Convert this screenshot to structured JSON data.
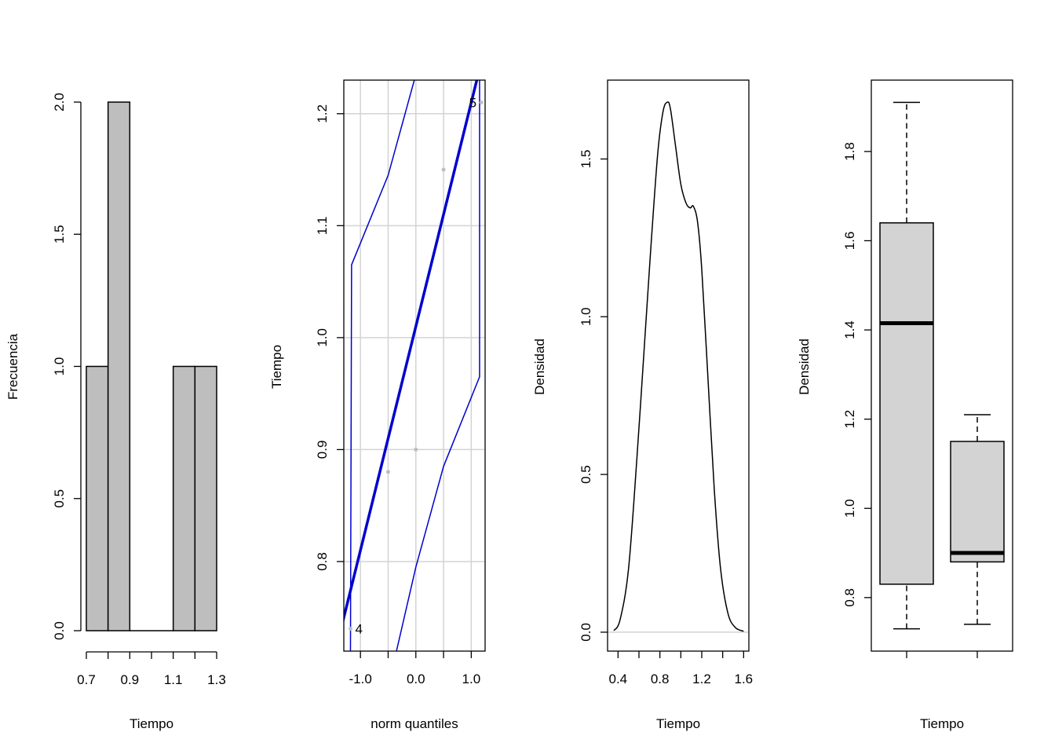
{
  "chart_data": [
    {
      "type": "bar",
      "subtype": "histogram",
      "bins": [
        {
          "from": 0.7,
          "to": 0.8,
          "count": 1
        },
        {
          "from": 0.8,
          "to": 0.9,
          "count": 2
        },
        {
          "from": 0.9,
          "to": 1.0,
          "count": 0
        },
        {
          "from": 1.0,
          "to": 1.1,
          "count": 0
        },
        {
          "from": 1.1,
          "to": 1.2,
          "count": 1
        },
        {
          "from": 1.2,
          "to": 1.3,
          "count": 1
        }
      ],
      "xlabel": "Tiempo",
      "ylabel": "Frecuencia",
      "xlim": [
        0.7,
        1.3
      ],
      "ylim": [
        0,
        2
      ],
      "xticks": [
        0.7,
        0.8,
        0.9,
        1.0,
        1.1,
        1.2,
        1.3
      ],
      "xtick_labels": [
        "0.7",
        "",
        "0.9",
        "",
        "1.1",
        "",
        "1.3"
      ],
      "yticks": [
        0,
        0.5,
        1,
        1.5,
        2
      ],
      "ytick_labels": [
        "0.0",
        "0.5",
        "1.0",
        "1.5",
        "2.0"
      ],
      "bar_color": "#bebebe"
    },
    {
      "type": "scatter",
      "subtype": "qq-plot",
      "points": [
        {
          "x": -1.18,
          "y": 0.74
        },
        {
          "x": -0.5,
          "y": 0.88
        },
        {
          "x": 0.0,
          "y": 0.9
        },
        {
          "x": 0.5,
          "y": 1.15
        },
        {
          "x": 1.18,
          "y": 1.21
        }
      ],
      "point_labels": [
        {
          "text": "4",
          "x": -1.18,
          "y": 0.74
        },
        {
          "text": "5",
          "x": 1.18,
          "y": 1.21
        }
      ],
      "reference_line": {
        "intercept": 1.01,
        "slope": 0.2
      },
      "envelope_upper": [
        {
          "x": -1.18,
          "y": 0.72
        },
        {
          "x": -1.16,
          "y": 1.065
        },
        {
          "x": -0.5,
          "y": 1.145
        },
        {
          "x": 0.0,
          "y": 1.235
        }
      ],
      "envelope_lower": [
        {
          "x": -0.35,
          "y": 0.72
        },
        {
          "x": 0.0,
          "y": 0.795
        },
        {
          "x": 0.5,
          "y": 0.885
        },
        {
          "x": 1.15,
          "y": 0.965
        },
        {
          "x": 1.15,
          "y": 1.235
        }
      ],
      "xlabel": "norm quantiles",
      "ylabel": "Tiempo",
      "xlim": [
        -1.3,
        1.25
      ],
      "ylim": [
        0.72,
        1.23
      ],
      "xticks": [
        -1.5,
        -1.0,
        -0.5,
        0.0,
        0.5,
        1.0
      ],
      "xtick_labels": [
        "",
        "-1.0",
        "",
        "0.0",
        "",
        "1.0"
      ],
      "yticks": [
        0.8,
        0.9,
        1.0,
        1.1,
        1.2
      ],
      "ytick_labels": [
        "0.8",
        "0.9",
        "1.0",
        "1.1",
        "1.2"
      ],
      "grid": true,
      "line_color": "#0000cd",
      "point_color": "#bebebe"
    },
    {
      "type": "line",
      "subtype": "density",
      "points": [
        {
          "x": 0.36,
          "y": 0.005
        },
        {
          "x": 0.42,
          "y": 0.04
        },
        {
          "x": 0.5,
          "y": 0.2
        },
        {
          "x": 0.58,
          "y": 0.55
        },
        {
          "x": 0.66,
          "y": 0.95
        },
        {
          "x": 0.72,
          "y": 1.25
        },
        {
          "x": 0.78,
          "y": 1.52
        },
        {
          "x": 0.83,
          "y": 1.65
        },
        {
          "x": 0.87,
          "y": 1.68
        },
        {
          "x": 0.9,
          "y": 1.66
        },
        {
          "x": 0.95,
          "y": 1.54
        },
        {
          "x": 1.0,
          "y": 1.42
        },
        {
          "x": 1.05,
          "y": 1.36
        },
        {
          "x": 1.09,
          "y": 1.345
        },
        {
          "x": 1.12,
          "y": 1.35
        },
        {
          "x": 1.16,
          "y": 1.3
        },
        {
          "x": 1.2,
          "y": 1.15
        },
        {
          "x": 1.26,
          "y": 0.8
        },
        {
          "x": 1.32,
          "y": 0.45
        },
        {
          "x": 1.38,
          "y": 0.2
        },
        {
          "x": 1.45,
          "y": 0.06
        },
        {
          "x": 1.52,
          "y": 0.015
        },
        {
          "x": 1.6,
          "y": 0.003
        }
      ],
      "baseline": 0,
      "xlabel": "Tiempo",
      "ylabel": "Densidad",
      "xlim": [
        0.3,
        1.65
      ],
      "ylim": [
        -0.06,
        1.75
      ],
      "xticks": [
        0.4,
        0.6,
        0.8,
        1.0,
        1.2,
        1.4,
        1.6
      ],
      "xtick_labels": [
        "0.4",
        "",
        "0.8",
        "",
        "1.2",
        "",
        "1.6"
      ],
      "yticks": [
        0.0,
        0.5,
        1.0,
        1.5
      ],
      "ytick_labels": [
        "0.0",
        "0.5",
        "1.0",
        "1.5"
      ]
    },
    {
      "type": "box",
      "series": [
        {
          "min": 0.73,
          "q1": 0.83,
          "median": 1.415,
          "q3": 1.64,
          "max": 1.91
        },
        {
          "min": 0.74,
          "q1": 0.88,
          "median": 0.9,
          "q3": 1.15,
          "max": 1.21
        }
      ],
      "xlabel": "Tiempo",
      "ylabel": "Densidad",
      "xlim": [
        0.5,
        2.5
      ],
      "ylim": [
        0.68,
        1.96
      ],
      "yticks": [
        0.8,
        1.0,
        1.2,
        1.4,
        1.6,
        1.8
      ],
      "ytick_labels": [
        "0.8",
        "1.0",
        "1.2",
        "1.4",
        "1.6",
        "1.8"
      ],
      "box_color": "#d3d3d3"
    }
  ]
}
